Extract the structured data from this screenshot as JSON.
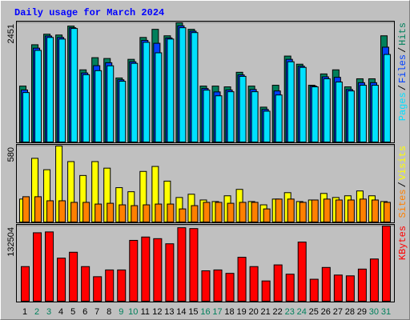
{
  "chart_data": [
    {
      "type": "bar",
      "title": "Daily usage for March 2024",
      "legend_separator": "/",
      "ylim": [
        0,
        2451
      ],
      "yticks": [
        2451
      ],
      "series": [
        {
          "name": "Hits",
          "color": "#00805c",
          "values": [
            1150,
            2000,
            2217,
            2200,
            2384,
            1484,
            1734,
            1717,
            1317,
            1700,
            2150,
            2317,
            2184,
            2451,
            2317,
            1150,
            1150,
            1134,
            1434,
            1150,
            717,
            1167,
            1767,
            1600,
            1167,
            1400,
            1484,
            1134,
            1300,
            1300,
            2184
          ]
        },
        {
          "name": "Files",
          "color": "#0040ff",
          "values": [
            1070,
            1930,
            2180,
            2150,
            2350,
            1420,
            1570,
            1630,
            1280,
            1650,
            2090,
            2030,
            2140,
            2390,
            2280,
            1100,
            1030,
            1070,
            1380,
            1080,
            670,
            1050,
            1700,
            1560,
            1150,
            1340,
            1330,
            1080,
            1220,
            1220,
            1950
          ]
        },
        {
          "name": "Pages",
          "color": "#00e0ff",
          "values": [
            1017,
            1884,
            2150,
            2117,
            2334,
            1384,
            1467,
            1567,
            1250,
            1617,
            2050,
            1834,
            2117,
            2350,
            2250,
            1067,
            950,
            1034,
            1350,
            1034,
            634,
            967,
            1650,
            1534,
            1134,
            1300,
            1234,
            1050,
            1167,
            1167,
            1800
          ]
        }
      ]
    },
    {
      "type": "bar",
      "legend_separator": "/",
      "ylim": [
        0,
        580
      ],
      "yticks": [
        580
      ],
      "series": [
        {
          "name": "Visits",
          "color": "#ffff00",
          "values": [
            175,
            486,
            399,
            580,
            461,
            355,
            461,
            411,
            262,
            231,
            386,
            424,
            312,
            187,
            212,
            168,
            156,
            200,
            249,
            156,
            131,
            175,
            224,
            156,
            168,
            218,
            187,
            200,
            237,
            200,
            156
          ]
        },
        {
          "name": "Sites",
          "color": "#ff8000",
          "values": [
            193,
            193,
            162,
            162,
            150,
            150,
            137,
            143,
            131,
            125,
            131,
            137,
            137,
            100,
            125,
            150,
            150,
            143,
            150,
            150,
            100,
            175,
            175,
            150,
            168,
            175,
            168,
            168,
            175,
            168,
            150
          ]
        }
      ]
    },
    {
      "type": "bar",
      "ylim": [
        0,
        132504
      ],
      "yticks": [
        132504
      ],
      "categories": [
        "1",
        "2",
        "3",
        "4",
        "5",
        "6",
        "7",
        "8",
        "9",
        "10",
        "11",
        "12",
        "13",
        "14",
        "15",
        "16",
        "17",
        "18",
        "19",
        "20",
        "21",
        "22",
        "23",
        "24",
        "25",
        "26",
        "27",
        "28",
        "29",
        "30",
        "31"
      ],
      "category_colors": [
        "#000000",
        "#00805c",
        "#00805c",
        "#000000",
        "#000000",
        "#000000",
        "#000000",
        "#000000",
        "#00805c",
        "#00805c",
        "#000000",
        "#000000",
        "#000000",
        "#000000",
        "#000000",
        "#00805c",
        "#00805c",
        "#000000",
        "#000000",
        "#000000",
        "#000000",
        "#000000",
        "#00805c",
        "#00805c",
        "#000000",
        "#000000",
        "#000000",
        "#000000",
        "#000000",
        "#00805c",
        "#00805c"
      ],
      "series": [
        {
          "name": "KBytes",
          "color": "#ff0000",
          "values": [
            61000,
            120600,
            122100,
            75900,
            86300,
            61000,
            43200,
            55100,
            55100,
            107200,
            113100,
            110200,
            101200,
            129500,
            128000,
            53600,
            55100,
            49100,
            77400,
            61000,
            35700,
            64000,
            47600,
            104200,
            38700,
            59500,
            46100,
            44700,
            56600,
            74400,
            132504
          ]
        }
      ]
    }
  ]
}
